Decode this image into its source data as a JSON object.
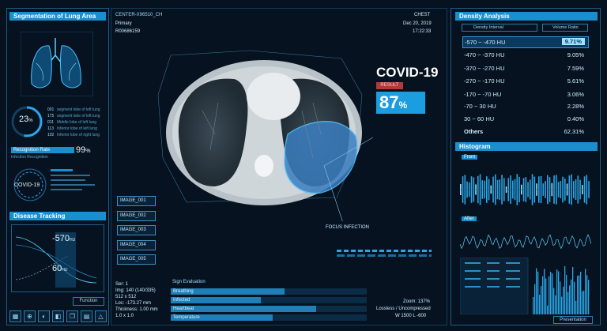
{
  "left": {
    "seg_title": "Segmentation of Lung Area",
    "ring_value": "23",
    "ring_unit": "%",
    "list_items": [
      {
        "code": "001",
        "text": "segment lobe of left lung"
      },
      {
        "code": "175",
        "text": "segment lobe of left lung"
      },
      {
        "code": "011",
        "text": "Middle lobe of left lung"
      },
      {
        "code": "113",
        "text": "Inferior lobe of left lung"
      },
      {
        "code": "192",
        "text": "Inferior lobe of right lung"
      }
    ],
    "recognition_label": "Recognition Rate",
    "recognition_sub": "Infection Recognition",
    "recognition_value": "99",
    "recognition_unit": "%",
    "covid_label": "COVID-19",
    "disease_title": "Disease Tracking",
    "tracking_top": "-570",
    "tracking_top_unit": "HU",
    "tracking_bottom": "60",
    "tracking_bottom_unit": "HU",
    "function_label": "Function"
  },
  "header": {
    "patient_id": "CENTER-X96510_CH",
    "status": "Primary",
    "record": "R00686159",
    "exam": "CHEST",
    "date": "Dec 20, 2019",
    "time": "17:22:33"
  },
  "center": {
    "covid_title": "COVID-19",
    "badge": "RESULT",
    "percent": "87",
    "percent_unit": "%",
    "focus_label": "FOCUS INFECTION",
    "images": [
      "IMAGE_001",
      "IMAGE_002",
      "IMAGE_003",
      "IMAGE_004",
      "IMAGE_005"
    ],
    "info": [
      "Ser: 1",
      "Img: 140 (140/335)",
      "512 x 512",
      "Loc: -173.27 mm",
      "Thickness: 1.00 mm",
      "1.0 x 1.0"
    ],
    "sign_title": "Sign Evaluation",
    "signs": [
      {
        "label": "Breathing",
        "level": 0.58
      },
      {
        "label": "Infected",
        "level": 0.46
      },
      {
        "label": "Heartbeat",
        "level": 0.74
      },
      {
        "label": "Temperature",
        "level": 0.52
      }
    ],
    "zoom": "Zoom: 137%",
    "compression": "Lossless / Uncompressed",
    "window": "W 1500 L -600"
  },
  "right": {
    "density_title": "Density Analysis",
    "density_interval": "Density Interval",
    "volume_ratio": "Volume Ratio",
    "rows": [
      {
        "label": "-570 ~ -470 HU",
        "value": "9.71%"
      },
      {
        "label": "-470 ~ -370 HU",
        "value": "9.05%"
      },
      {
        "label": "-370 ~ -270 HU",
        "value": "7.59%"
      },
      {
        "label": "-270 ~ -170 HU",
        "value": "5.61%"
      },
      {
        "label": "-170 ~ -70 HU",
        "value": "3.06%"
      },
      {
        "label": "-70 ~ 30 HU",
        "value": "2.28%"
      },
      {
        "label": "30 ~ 60 HU",
        "value": "0.40%"
      },
      {
        "label": "Others",
        "value": "62.31%"
      }
    ],
    "histogram_title": "Histogram",
    "front_label": "Front",
    "after_label": "After",
    "presentation_label": "Presentation"
  },
  "colors": {
    "accent": "#1a8fd0",
    "highlight": "#9fe4ff",
    "badge": "#b43a3a"
  },
  "icons": [
    "grid-icon",
    "zoom-icon",
    "contrast-icon",
    "adjust-icon",
    "layers-icon",
    "stack-icon",
    "measure-icon"
  ]
}
